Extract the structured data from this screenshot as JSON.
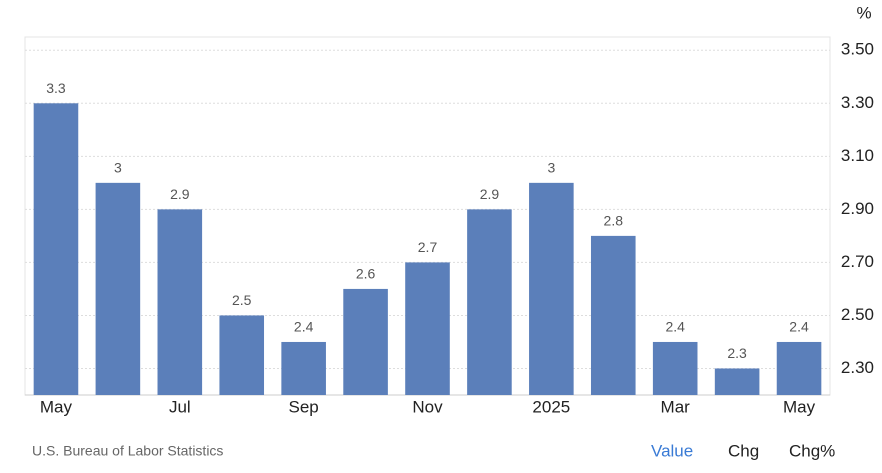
{
  "chart_data": {
    "type": "bar",
    "unit": "%",
    "categories": [
      "May",
      null,
      "Jul",
      null,
      "Sep",
      null,
      "Nov",
      null,
      "2025",
      null,
      "Mar",
      null,
      "May"
    ],
    "values": [
      3.3,
      3,
      2.9,
      2.5,
      2.4,
      2.6,
      2.7,
      2.9,
      3,
      2.8,
      2.4,
      2.3,
      2.4
    ],
    "color": "#5b7fba",
    "ylim": [
      2.2,
      3.55
    ],
    "yticks": [
      {
        "value": 2.3,
        "label": "2.30"
      },
      {
        "value": 2.5,
        "label": "2.50"
      },
      {
        "value": 2.7,
        "label": "2.70"
      },
      {
        "value": 2.9,
        "label": "2.90"
      },
      {
        "value": 3.1,
        "label": "3.10"
      },
      {
        "value": 3.3,
        "label": "3.30"
      },
      {
        "value": 3.5,
        "label": "3.50"
      }
    ],
    "grid": true,
    "source": "U.S. Bureau of Labor Statistics",
    "tabs": [
      "Value",
      "Chg",
      "Chg%"
    ]
  }
}
